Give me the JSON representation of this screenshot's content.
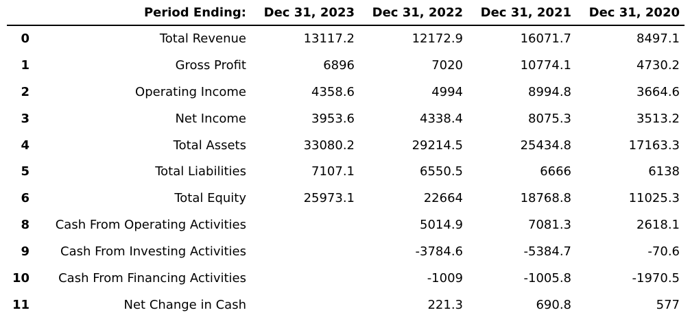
{
  "table": {
    "header": {
      "index_label": "",
      "label_column": "Period Ending:",
      "periods": [
        "Dec 31, 2023",
        "Dec 31, 2022",
        "Dec 31, 2021",
        "Dec 31, 2020"
      ]
    },
    "rows": [
      {
        "index": "0",
        "label": "Total Revenue",
        "values": [
          "13117.2",
          "12172.9",
          "16071.7",
          "8497.1"
        ]
      },
      {
        "index": "1",
        "label": "Gross Profit",
        "values": [
          "6896",
          "7020",
          "10774.1",
          "4730.2"
        ]
      },
      {
        "index": "2",
        "label": "Operating Income",
        "values": [
          "4358.6",
          "4994",
          "8994.8",
          "3664.6"
        ]
      },
      {
        "index": "3",
        "label": "Net Income",
        "values": [
          "3953.6",
          "4338.4",
          "8075.3",
          "3513.2"
        ]
      },
      {
        "index": "4",
        "label": "Total Assets",
        "values": [
          "33080.2",
          "29214.5",
          "25434.8",
          "17163.3"
        ]
      },
      {
        "index": "5",
        "label": "Total Liabilities",
        "values": [
          "7107.1",
          "6550.5",
          "6666",
          "6138"
        ]
      },
      {
        "index": "6",
        "label": "Total Equity",
        "values": [
          "25973.1",
          "22664",
          "18768.8",
          "11025.3"
        ]
      },
      {
        "index": "8",
        "label": "Cash From Operating Activities",
        "values": [
          "",
          "5014.9",
          "7081.3",
          "2618.1"
        ]
      },
      {
        "index": "9",
        "label": "Cash From Investing Activities",
        "values": [
          "",
          "-3784.6",
          "-5384.7",
          "-70.6"
        ]
      },
      {
        "index": "10",
        "label": "Cash From Financing Activities",
        "values": [
          "",
          "-1009",
          "-1005.8",
          "-1970.5"
        ]
      },
      {
        "index": "11",
        "label": "Net Change in Cash",
        "values": [
          "",
          "221.3",
          "690.8",
          "577"
        ]
      }
    ]
  }
}
